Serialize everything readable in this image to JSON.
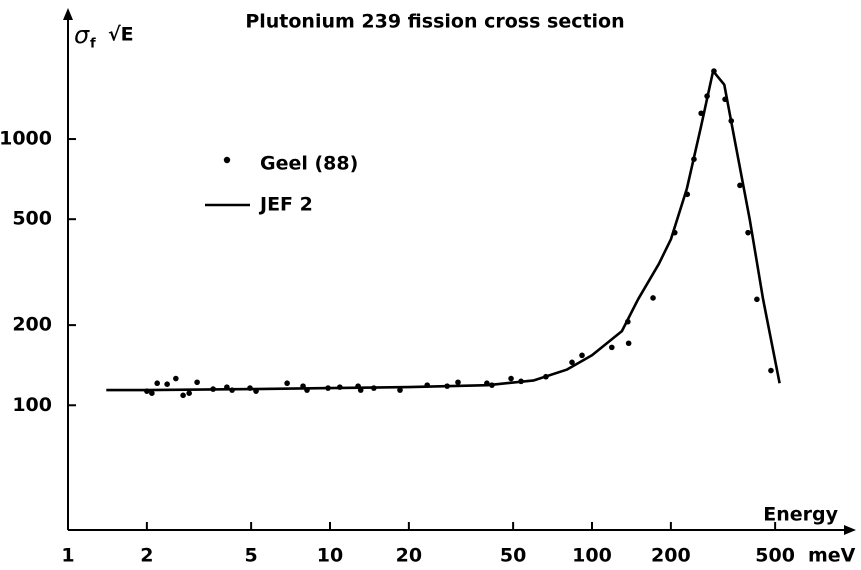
{
  "chart_data": {
    "type": "line",
    "title": "Plutonium 239 fission cross section",
    "y_label": "σ",
    "y_label_sub": "f",
    "y_label_2": "√E",
    "x_label": "Energy",
    "x_unit": "meV",
    "xscale": "log",
    "yscale": "log",
    "xlim": [
      1,
      1000
    ],
    "ylim": [
      34,
      2800
    ],
    "xticks": [
      1,
      2,
      5,
      10,
      20,
      50,
      100,
      200,
      500
    ],
    "yticks": [
      100,
      200,
      500,
      1000
    ],
    "grid": false,
    "legend": "upper left",
    "series": [
      {
        "name": "Geel (88)",
        "type": "scatter",
        "color": "#000000",
        "x": [
          2.0,
          2.09,
          2.19,
          2.39,
          2.58,
          2.75,
          2.9,
          3.11,
          3.58,
          4.04,
          4.23,
          4.95,
          5.22,
          6.86,
          7.89,
          8.17,
          9.83,
          10.9,
          12.8,
          13.1,
          14.7,
          18.5,
          23.5,
          28.0,
          30.8,
          39.7,
          41.5,
          49.1,
          53.6,
          66.7,
          83.9,
          91.6,
          119,
          137,
          138,
          171,
          207,
          231,
          245,
          261,
          275,
          292,
          322,
          340,
          367,
          394,
          426,
          482
        ],
        "values": [
          113,
          111,
          121,
          120,
          126,
          109,
          111,
          122,
          115,
          117,
          114,
          116,
          113,
          121,
          118,
          114,
          116,
          117,
          118,
          114,
          116,
          114,
          119,
          118,
          122,
          121,
          119,
          126,
          123,
          128,
          145,
          154,
          165,
          206,
          171,
          253,
          445,
          620,
          840,
          1250,
          1450,
          1800,
          1410,
          1170,
          670,
          445,
          250,
          135
        ]
      },
      {
        "name": "JEF 2",
        "type": "line",
        "color": "#000000",
        "x": [
          1.4,
          2,
          5,
          10,
          20,
          40,
          60,
          80,
          100,
          130,
          150,
          180,
          200,
          230,
          260,
          290,
          320,
          350,
          400,
          450,
          520
        ],
        "values": [
          114,
          114,
          115,
          116,
          117,
          119,
          124,
          136,
          154,
          190,
          250,
          340,
          420,
          650,
          1100,
          1800,
          1600,
          1000,
          500,
          250,
          121
        ]
      }
    ]
  }
}
